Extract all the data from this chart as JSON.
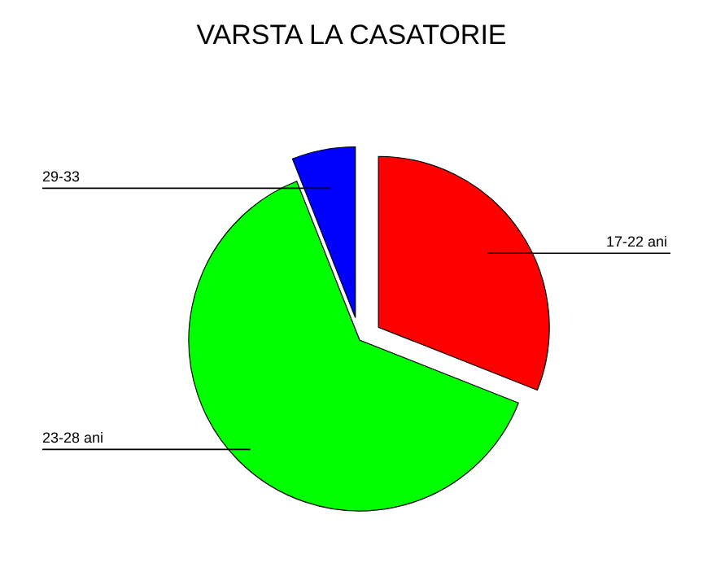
{
  "chart_data": {
    "type": "pie",
    "title": "VARSTA LA CASATORIE",
    "categories": [
      "17-22 ani",
      "23-28 ani",
      "29-33"
    ],
    "values": [
      31,
      63,
      6
    ],
    "colors": [
      "#ff0000",
      "#00ff00",
      "#0000ff"
    ]
  }
}
